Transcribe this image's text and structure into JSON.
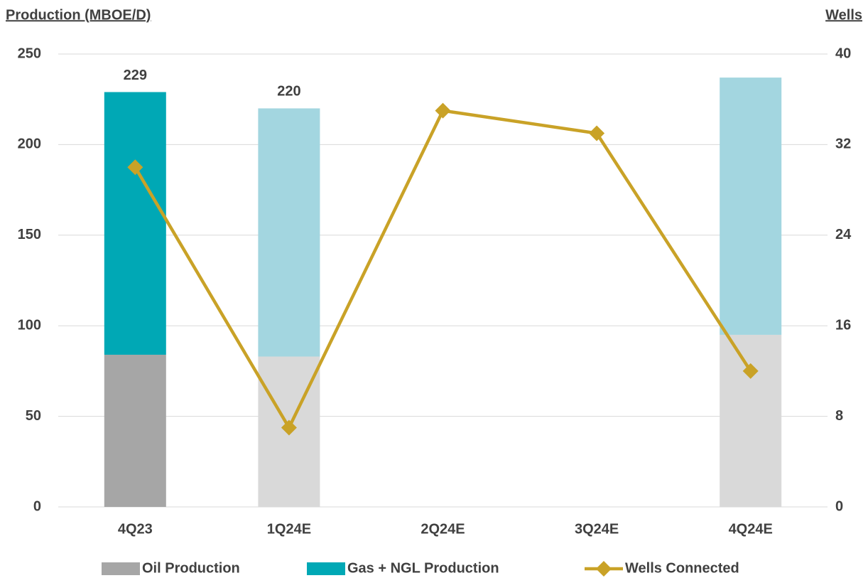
{
  "chart_data": {
    "type": "bar_line",
    "y_label": "Production (MBOE/D)",
    "y2_label": "Wells",
    "categories": [
      "4Q23",
      "1Q24E",
      "2Q24E",
      "3Q24E",
      "4Q24E"
    ],
    "series": [
      {
        "name": "Oil Production",
        "type": "bar",
        "color": "#a6a6a6",
        "colors": [
          "#a6a6a6",
          "#d9d9d9",
          "#d9d9d9",
          "#d9d9d9",
          "#d9d9d9"
        ],
        "values": [
          84,
          83,
          null,
          null,
          95
        ]
      },
      {
        "name": "Gas + NGL Production",
        "type": "bar",
        "color": "#00a8b5",
        "colors": [
          "#00a8b5",
          "#a3d6e0",
          "#a3d6e0",
          "#a3d6e0",
          "#a3d6e0"
        ],
        "values": [
          145,
          137,
          null,
          null,
          142
        ]
      },
      {
        "name": "Wells Connected",
        "type": "line",
        "axis": "y2",
        "color": "#c9a227",
        "values": [
          30,
          7,
          35,
          33,
          12
        ]
      }
    ],
    "totals": [
      229,
      220,
      null,
      null,
      null
    ],
    "ylim": [
      0,
      250
    ],
    "yticks": [
      0,
      50,
      100,
      150,
      200,
      250
    ],
    "y2lim": [
      0,
      40
    ],
    "y2ticks": [
      0,
      8,
      16,
      24,
      32,
      40
    ],
    "grid": true,
    "legend": "bottom"
  }
}
